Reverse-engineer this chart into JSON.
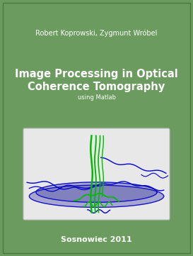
{
  "background_color": "#6b9b5e",
  "title_line1": "Image Processing in Optical",
  "title_line2": "Coherence Tomography",
  "subtitle": "using Matlab",
  "authors": "Robert Koprowski, Zygmunt Wróbel",
  "footer": "Sosnowiec 2011",
  "title_fontsize": 10.5,
  "subtitle_fontsize": 6.0,
  "authors_fontsize": 7.0,
  "footer_fontsize": 8.0,
  "text_color": "#ffffff",
  "image_bg": "#e8e8e8",
  "blue_color": "#0000cc",
  "green_color": "#00bb00",
  "dish_fill": "#7070bb",
  "dish_fill2": "#5555aa"
}
